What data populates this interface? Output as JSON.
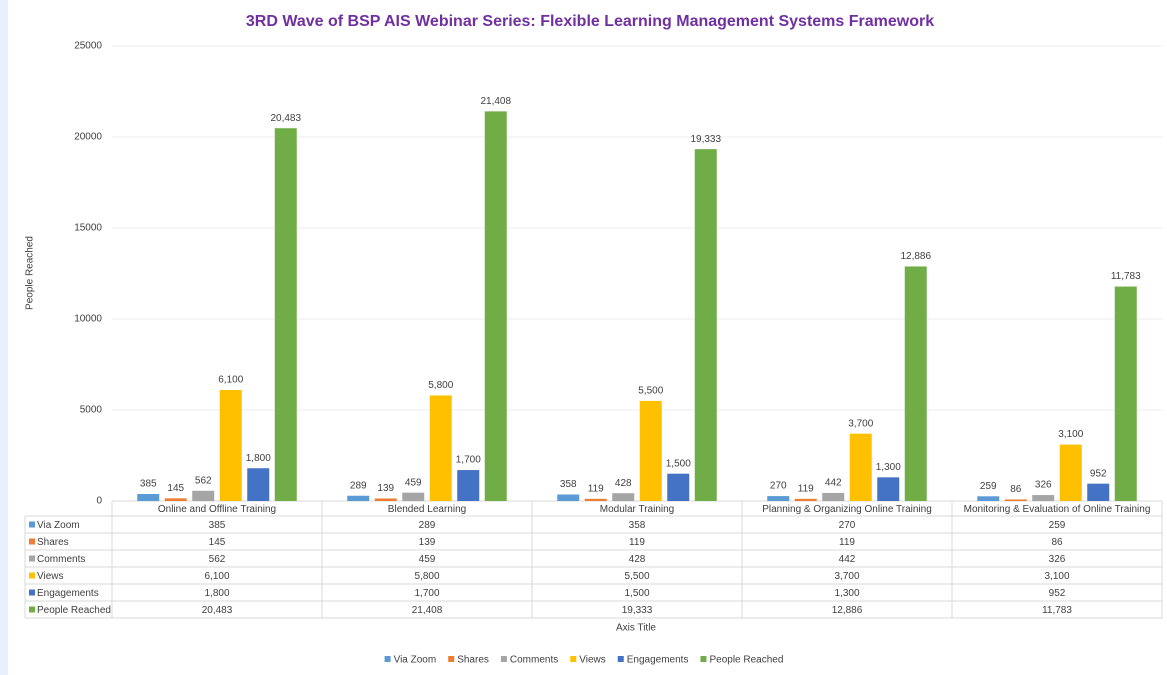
{
  "chart_data": {
    "type": "bar",
    "title": "3RD Wave of BSP AIS Webinar Series: Flexible Learning Management Systems Framework",
    "x_label": "Axis Title",
    "y_label": "People Reached",
    "categories": [
      "Online and Offline Training",
      "Blended Learning",
      "Modular Training",
      "Planning & Organizing Online Training",
      "Monitoring & Evaluation of Online Training"
    ],
    "series": [
      {
        "name": "Via Zoom",
        "color": "#5b9bd5",
        "values": [
          385,
          289,
          358,
          270,
          259
        ],
        "value_labels": [
          "385",
          "289",
          "358",
          "270",
          "259"
        ]
      },
      {
        "name": "Shares",
        "color": "#ed7d31",
        "values": [
          145,
          139,
          119,
          119,
          86
        ],
        "value_labels": [
          "145",
          "139",
          "119",
          "119",
          "86"
        ]
      },
      {
        "name": "Comments",
        "color": "#a5a5a5",
        "values": [
          562,
          459,
          428,
          442,
          326
        ],
        "value_labels": [
          "562",
          "459",
          "428",
          "442",
          "326"
        ]
      },
      {
        "name": "Views",
        "color": "#ffc000",
        "values": [
          6100,
          5800,
          5500,
          3700,
          3100
        ],
        "value_labels": [
          "6,100",
          "5,800",
          "5,500",
          "3,700",
          "3,100"
        ]
      },
      {
        "name": "Engagements",
        "color": "#4472c4",
        "values": [
          1800,
          1700,
          1500,
          1300,
          952
        ],
        "value_labels": [
          "1,800",
          "1,700",
          "1,500",
          "1,300",
          "952"
        ]
      },
      {
        "name": "People Reached",
        "color": "#70ad47",
        "values": [
          20483,
          21408,
          19333,
          12886,
          11783
        ],
        "value_labels": [
          "20,483",
          "21,408",
          "19,333",
          "12,886",
          "11,783"
        ]
      }
    ],
    "ylim": [
      0,
      25000
    ],
    "yticks": [
      0,
      5000,
      10000,
      15000,
      20000,
      25000
    ],
    "grid": true,
    "legend": "bottom"
  }
}
